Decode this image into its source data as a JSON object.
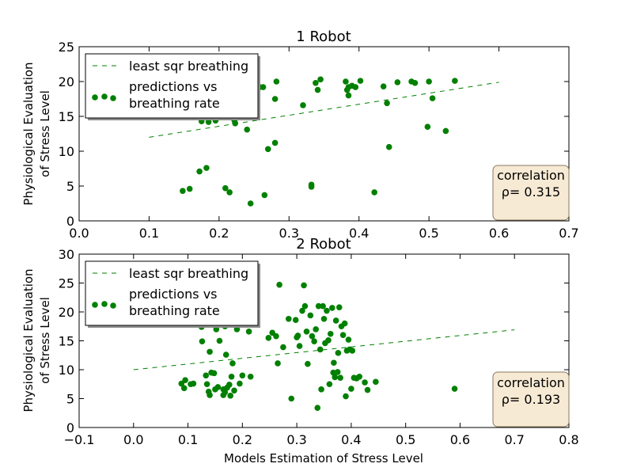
{
  "colors": {
    "marker": "#008000",
    "fit_line": "#008000",
    "box_fill": "#f7ead4",
    "box_edge": "#8a7a60"
  },
  "chart_data": [
    {
      "type": "scatter",
      "title": "1 Robot",
      "xlabel": "",
      "ylabel": [
        "Physiological Evaluation",
        "of Stress Level"
      ],
      "xlim": [
        0.0,
        0.7
      ],
      "ylim": [
        0,
        25
      ],
      "xticks": [
        0.0,
        0.1,
        0.2,
        0.3,
        0.4,
        0.5,
        0.6,
        0.7
      ],
      "xtick_labels": [
        "0.0",
        "0.1",
        "0.2",
        "0.3",
        "0.4",
        "0.5",
        "0.6",
        "0.7"
      ],
      "yticks": [
        0,
        5,
        10,
        15,
        20,
        25
      ],
      "ytick_labels": [
        "0",
        "5",
        "10",
        "15",
        "20",
        "25"
      ],
      "legend": {
        "location": "upper-left",
        "fit_label": "least sqr breathing",
        "points_label": [
          "predictions vs",
          "breathing rate"
        ]
      },
      "annotation": {
        "line1": "correlation",
        "line2": "ρ=  0.315"
      },
      "fit_line": {
        "x": [
          0.1,
          0.6
        ],
        "y": [
          12.0,
          19.9
        ]
      },
      "points": [
        [
          0.148,
          15.0
        ],
        [
          0.148,
          4.3
        ],
        [
          0.158,
          4.6
        ],
        [
          0.172,
          7.1
        ],
        [
          0.175,
          14.3
        ],
        [
          0.182,
          7.6
        ],
        [
          0.185,
          14.2
        ],
        [
          0.195,
          14.4
        ],
        [
          0.209,
          4.7
        ],
        [
          0.213,
          15.0
        ],
        [
          0.215,
          4.1
        ],
        [
          0.222,
          14.4
        ],
        [
          0.223,
          14.0
        ],
        [
          0.24,
          13.1
        ],
        [
          0.245,
          2.5
        ],
        [
          0.258,
          19.2
        ],
        [
          0.263,
          19.2
        ],
        [
          0.265,
          3.7
        ],
        [
          0.27,
          10.3
        ],
        [
          0.28,
          17.5
        ],
        [
          0.28,
          11.2
        ],
        [
          0.282,
          20.0
        ],
        [
          0.32,
          16.6
        ],
        [
          0.332,
          4.9
        ],
        [
          0.332,
          5.2
        ],
        [
          0.338,
          19.8
        ],
        [
          0.341,
          18.8
        ],
        [
          0.345,
          20.3
        ],
        [
          0.381,
          20.0
        ],
        [
          0.383,
          18.8
        ],
        [
          0.385,
          19.2
        ],
        [
          0.385,
          18.0
        ],
        [
          0.39,
          19.4
        ],
        [
          0.395,
          19.2
        ],
        [
          0.402,
          20.1
        ],
        [
          0.422,
          4.1
        ],
        [
          0.435,
          19.3
        ],
        [
          0.44,
          16.9
        ],
        [
          0.443,
          10.6
        ],
        [
          0.455,
          19.9
        ],
        [
          0.475,
          20.0
        ],
        [
          0.48,
          19.8
        ],
        [
          0.498,
          13.5
        ],
        [
          0.5,
          20.0
        ],
        [
          0.505,
          17.6
        ],
        [
          0.524,
          12.9
        ],
        [
          0.537,
          20.1
        ]
      ]
    },
    {
      "type": "scatter",
      "title": "2 Robot",
      "xlabel": "Models Estimation of Stress Level",
      "ylabel": [
        "Physiological Evaluation",
        "of Stress Level"
      ],
      "xlim": [
        -0.1,
        0.8
      ],
      "ylim": [
        0,
        30
      ],
      "xticks": [
        -0.1,
        0.0,
        0.1,
        0.2,
        0.3,
        0.4,
        0.5,
        0.6,
        0.7,
        0.8
      ],
      "xtick_labels": [
        "−0.1",
        "0.0",
        "0.1",
        "0.2",
        "0.3",
        "0.4",
        "0.5",
        "0.6",
        "0.7",
        "0.8"
      ],
      "yticks": [
        0,
        5,
        10,
        15,
        20,
        25,
        30
      ],
      "ytick_labels": [
        "0",
        "5",
        "10",
        "15",
        "20",
        "25",
        "30"
      ],
      "legend": {
        "location": "upper-left",
        "fit_label": "least sqr breathing",
        "points_label": [
          "predictions vs",
          "breathing rate"
        ]
      },
      "annotation": {
        "line1": "correlation",
        "line2": "ρ=  0.193"
      },
      "fit_line": {
        "x": [
          0.0,
          0.7
        ],
        "y": [
          10.0,
          16.9
        ]
      },
      "points": [
        [
          0.088,
          7.6
        ],
        [
          0.093,
          6.8
        ],
        [
          0.095,
          8.2
        ],
        [
          0.105,
          7.5
        ],
        [
          0.11,
          7.6
        ],
        [
          0.125,
          17.4
        ],
        [
          0.126,
          14.9
        ],
        [
          0.133,
          9.0
        ],
        [
          0.135,
          7.5
        ],
        [
          0.138,
          6.2
        ],
        [
          0.14,
          5.6
        ],
        [
          0.14,
          13.1
        ],
        [
          0.143,
          9.5
        ],
        [
          0.148,
          9.4
        ],
        [
          0.15,
          6.6
        ],
        [
          0.152,
          17.0
        ],
        [
          0.155,
          7.0
        ],
        [
          0.158,
          15.0
        ],
        [
          0.165,
          5.6
        ],
        [
          0.165,
          6.6
        ],
        [
          0.168,
          6.1
        ],
        [
          0.168,
          17.5
        ],
        [
          0.17,
          12.6
        ],
        [
          0.172,
          6.9
        ],
        [
          0.176,
          7.4
        ],
        [
          0.178,
          5.5
        ],
        [
          0.18,
          8.8
        ],
        [
          0.182,
          11.1
        ],
        [
          0.185,
          6.4
        ],
        [
          0.19,
          17.0
        ],
        [
          0.195,
          7.6
        ],
        [
          0.2,
          9.0
        ],
        [
          0.212,
          16.6
        ],
        [
          0.215,
          8.8
        ],
        [
          0.248,
          15.5
        ],
        [
          0.255,
          16.4
        ],
        [
          0.262,
          15.8
        ],
        [
          0.265,
          11.1
        ],
        [
          0.268,
          24.7
        ],
        [
          0.275,
          13.9
        ],
        [
          0.285,
          18.8
        ],
        [
          0.29,
          5.0
        ],
        [
          0.298,
          18.6
        ],
        [
          0.3,
          15.6
        ],
        [
          0.302,
          15.9
        ],
        [
          0.305,
          14.1
        ],
        [
          0.31,
          20.2
        ],
        [
          0.313,
          24.6
        ],
        [
          0.315,
          21.0
        ],
        [
          0.318,
          16.6
        ],
        [
          0.32,
          11.0
        ],
        [
          0.325,
          19.4
        ],
        [
          0.328,
          15.8
        ],
        [
          0.332,
          14.9
        ],
        [
          0.335,
          17.0
        ],
        [
          0.338,
          3.4
        ],
        [
          0.34,
          21.0
        ],
        [
          0.343,
          13.5
        ],
        [
          0.345,
          6.6
        ],
        [
          0.348,
          21.0
        ],
        [
          0.35,
          18.8
        ],
        [
          0.352,
          14.6
        ],
        [
          0.355,
          20.2
        ],
        [
          0.358,
          15.1
        ],
        [
          0.36,
          7.5
        ],
        [
          0.362,
          16.2
        ],
        [
          0.365,
          20.7
        ],
        [
          0.367,
          9.5
        ],
        [
          0.368,
          11.2
        ],
        [
          0.37,
          8.7
        ],
        [
          0.372,
          18.5
        ],
        [
          0.375,
          9.6
        ],
        [
          0.376,
          12.9
        ],
        [
          0.378,
          20.8
        ],
        [
          0.38,
          8.6
        ],
        [
          0.382,
          17.5
        ],
        [
          0.385,
          16.0
        ],
        [
          0.388,
          18.0
        ],
        [
          0.39,
          5.4
        ],
        [
          0.392,
          13.3
        ],
        [
          0.395,
          15.2
        ],
        [
          0.397,
          13.5
        ],
        [
          0.4,
          6.7
        ],
        [
          0.402,
          13.3
        ],
        [
          0.405,
          8.6
        ],
        [
          0.41,
          8.5
        ],
        [
          0.415,
          8.8
        ],
        [
          0.425,
          7.8
        ],
        [
          0.43,
          6.5
        ],
        [
          0.445,
          7.9
        ],
        [
          0.59,
          6.7
        ]
      ]
    }
  ]
}
